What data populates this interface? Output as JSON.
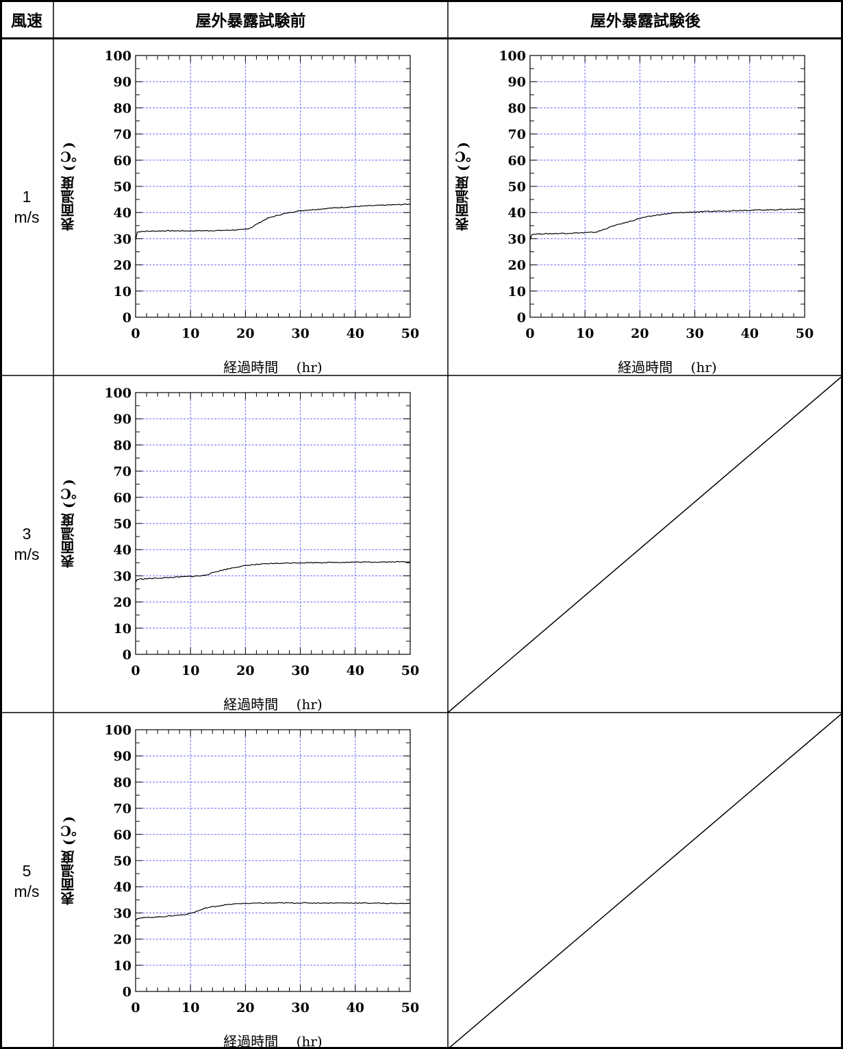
{
  "table": {
    "header_speed": "風速",
    "header_before": "屋外暴露試験前",
    "header_after": "屋外暴露試験後",
    "rows": [
      {
        "speed_value": "1",
        "speed_unit": "m/s"
      },
      {
        "speed_value": "3",
        "speed_unit": "m/s"
      },
      {
        "speed_value": "5",
        "speed_unit": "m/s"
      }
    ]
  },
  "axis_text": {
    "xlabel": "経過時間　 (hr)",
    "ylabel": "表面温度 (℃)"
  },
  "colors": {
    "grid": "#6a6aff",
    "line": "#000000",
    "border": "#000000"
  },
  "chart_data": [
    {
      "type": "line",
      "panel": "1 m/s 屋外暴露試験前",
      "xlabel": "経過時間　 (hr)",
      "ylabel": "表面温度 (℃)",
      "xlim": [
        0,
        50
      ],
      "ylim": [
        0,
        100
      ],
      "xticks": [
        0,
        10,
        20,
        30,
        40,
        50
      ],
      "yticks": [
        0,
        10,
        20,
        30,
        40,
        50,
        60,
        70,
        80,
        90,
        100
      ],
      "grid": true,
      "x": [
        0,
        0.3,
        1,
        5,
        10,
        15,
        19,
        20,
        21,
        22,
        24,
        26,
        28,
        30,
        35,
        40,
        45,
        50
      ],
      "y": [
        29.5,
        32.5,
        32.8,
        33.0,
        33.0,
        33.1,
        33.4,
        33.6,
        34.2,
        35.5,
        37.8,
        39.0,
        40.0,
        40.7,
        41.6,
        42.3,
        42.8,
        43.2
      ]
    },
    {
      "type": "line",
      "panel": "1 m/s 屋外暴露試験後",
      "xlabel": "経過時間　 (hr)",
      "ylabel": "表面温度 (℃)",
      "xlim": [
        0,
        50
      ],
      "ylim": [
        0,
        100
      ],
      "xticks": [
        0,
        10,
        20,
        30,
        40,
        50
      ],
      "yticks": [
        0,
        10,
        20,
        30,
        40,
        50,
        60,
        70,
        80,
        90,
        100
      ],
      "grid": true,
      "x": [
        0,
        0.3,
        1,
        5,
        10,
        12,
        13,
        15,
        18,
        20,
        23,
        26,
        30,
        35,
        40,
        45,
        50
      ],
      "y": [
        29.5,
        31.6,
        31.8,
        32.0,
        32.3,
        32.5,
        33.2,
        34.8,
        36.5,
        37.8,
        39.0,
        39.8,
        40.2,
        40.6,
        40.9,
        41.1,
        41.4
      ]
    },
    {
      "type": "line",
      "panel": "3 m/s 屋外暴露試験前",
      "xlabel": "経過時間　 (hr)",
      "ylabel": "表面温度 (℃)",
      "xlim": [
        0,
        50
      ],
      "ylim": [
        0,
        100
      ],
      "xticks": [
        0,
        10,
        20,
        30,
        40,
        50
      ],
      "yticks": [
        0,
        10,
        20,
        30,
        40,
        50,
        60,
        70,
        80,
        90,
        100
      ],
      "grid": true,
      "x": [
        0,
        0.3,
        1,
        5,
        10,
        12,
        13,
        15,
        18,
        21,
        25,
        30,
        35,
        40,
        45,
        50
      ],
      "y": [
        27.5,
        28.6,
        28.8,
        29.2,
        29.8,
        30.0,
        30.5,
        31.8,
        33.2,
        34.2,
        34.7,
        35.0,
        35.1,
        35.2,
        35.3,
        35.4
      ]
    },
    {
      "type": "line",
      "panel": "5 m/s 屋外暴露試験前",
      "xlabel": "経過時間　 (hr)",
      "ylabel": "表面温度 (℃)",
      "xlim": [
        0,
        50
      ],
      "ylim": [
        0,
        100
      ],
      "xticks": [
        0,
        10,
        20,
        30,
        40,
        50
      ],
      "yticks": [
        0,
        10,
        20,
        30,
        40,
        50,
        60,
        70,
        80,
        90,
        100
      ],
      "grid": true,
      "x": [
        0,
        0.3,
        1,
        5,
        9,
        10,
        11,
        13,
        16,
        19,
        25,
        30,
        35,
        40,
        45,
        50
      ],
      "y": [
        27.0,
        28.0,
        28.1,
        28.6,
        29.4,
        29.8,
        30.5,
        32.0,
        33.0,
        33.6,
        33.8,
        33.8,
        33.8,
        33.8,
        33.7,
        33.6
      ]
    }
  ]
}
